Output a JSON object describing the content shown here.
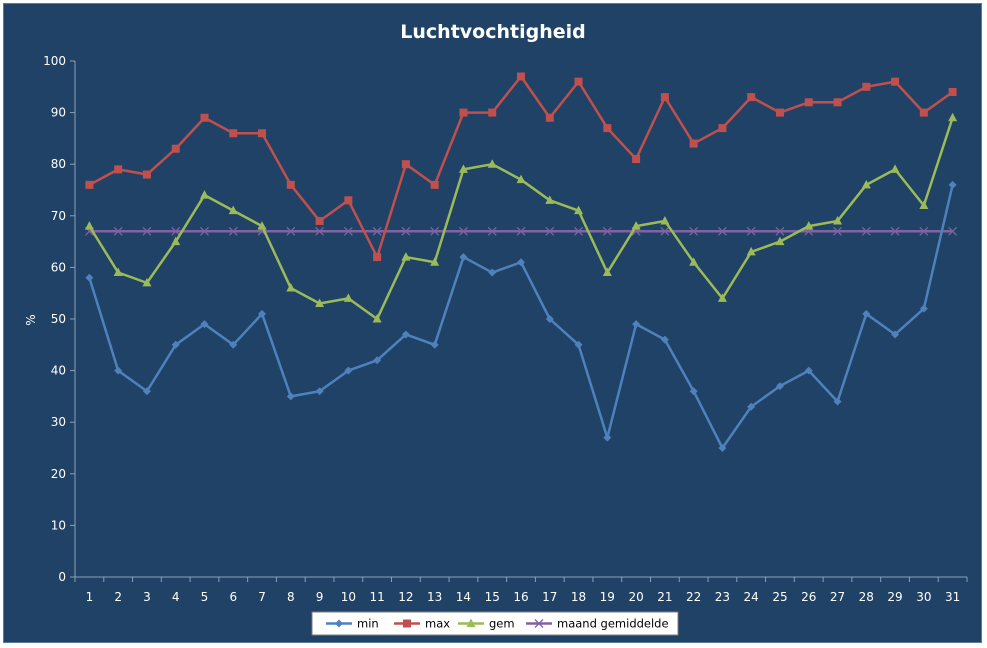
{
  "chart_data": {
    "type": "line",
    "title": "Luchtvochtigheid",
    "xlabel": "",
    "ylabel": "%",
    "ylim": [
      0,
      100
    ],
    "yticks": [
      0,
      10,
      20,
      30,
      40,
      50,
      60,
      70,
      80,
      90,
      100
    ],
    "categories": [
      "1",
      "2",
      "3",
      "4",
      "5",
      "6",
      "7",
      "8",
      "9",
      "10",
      "11",
      "12",
      "13",
      "14",
      "15",
      "16",
      "17",
      "18",
      "19",
      "20",
      "21",
      "22",
      "23",
      "24",
      "25",
      "26",
      "27",
      "28",
      "29",
      "30",
      "31"
    ],
    "grid": false,
    "legend_position": "bottom",
    "background_color": "#1f4266",
    "series": [
      {
        "name": "min",
        "color": "#4f81bd",
        "marker": "diamond",
        "values": [
          58,
          40,
          36,
          45,
          49,
          45,
          51,
          35,
          36,
          40,
          42,
          47,
          45,
          62,
          59,
          61,
          50,
          45,
          27,
          49,
          46,
          36,
          25,
          33,
          37,
          40,
          34,
          51,
          47,
          52,
          76
        ]
      },
      {
        "name": "max",
        "color": "#c0504d",
        "marker": "square",
        "values": [
          76,
          79,
          78,
          83,
          89,
          86,
          86,
          76,
          69,
          73,
          62,
          80,
          76,
          90,
          90,
          97,
          89,
          96,
          87,
          81,
          93,
          84,
          87,
          93,
          90,
          92,
          92,
          95,
          96,
          90,
          94
        ]
      },
      {
        "name": "gem",
        "color": "#9bbb59",
        "marker": "triangle",
        "values": [
          68,
          59,
          57,
          65,
          74,
          71,
          68,
          56,
          53,
          54,
          50,
          62,
          61,
          79,
          80,
          77,
          73,
          71,
          59,
          68,
          69,
          61,
          54,
          63,
          65,
          68,
          69,
          76,
          79,
          72,
          89
        ]
      },
      {
        "name": "maand gemiddelde",
        "color": "#8064a2",
        "marker": "x",
        "values": [
          67,
          67,
          67,
          67,
          67,
          67,
          67,
          67,
          67,
          67,
          67,
          67,
          67,
          67,
          67,
          67,
          67,
          67,
          67,
          67,
          67,
          67,
          67,
          67,
          67,
          67,
          67,
          67,
          67,
          67,
          67
        ]
      }
    ]
  }
}
